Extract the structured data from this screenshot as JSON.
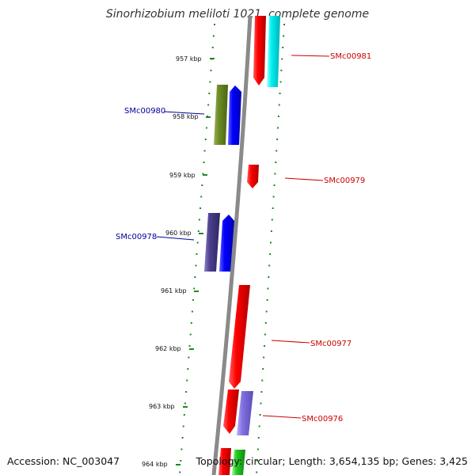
{
  "title": "Sinorhizobium meliloti 1021, complete genome",
  "accession_text": "Accession: NC_003047",
  "topology_text": "Topology: circular; Length: 3,654,135 bp; Genes: 3,425",
  "kbp_ticks": [
    "957 kbp",
    "958 kbp",
    "959 kbp",
    "960 kbp",
    "961 kbp",
    "962 kbp",
    "963 kbp",
    "964 kbp"
  ],
  "colors": {
    "backbone": "#8a8a8a",
    "scale_dots": "#1e8a1e",
    "forward_label": "#cc0000",
    "reverse_label": "#000099"
  },
  "gene_labels": [
    {
      "text": "SMc00981",
      "strand": "forward",
      "color": "#cc0000"
    },
    {
      "text": "SMc00980",
      "strand": "reverse",
      "color": "#000099"
    },
    {
      "text": "SMc00979",
      "strand": "forward",
      "color": "#cc0000"
    },
    {
      "text": "SMc00978",
      "strand": "reverse",
      "color": "#000099"
    },
    {
      "text": "SMc00977",
      "strand": "forward",
      "color": "#cc0000"
    },
    {
      "text": "SMc00976",
      "strand": "forward",
      "color": "#cc0000"
    }
  ]
}
